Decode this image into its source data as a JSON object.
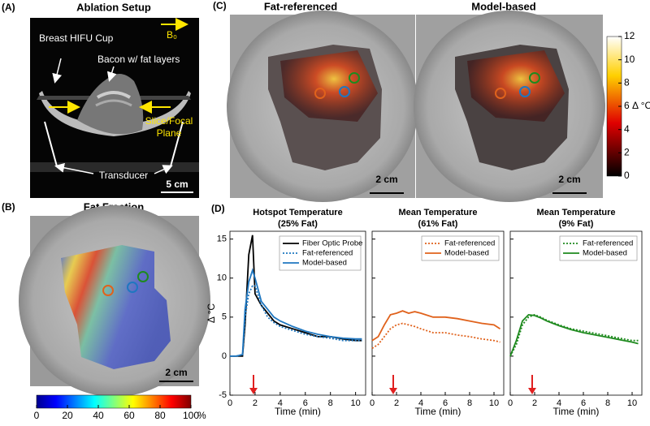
{
  "panel_a": {
    "letter": "(A)",
    "title": "Ablation Setup",
    "cup": "Breast HIFU Cup",
    "bacon": "Bacon w/ fat layers",
    "field": "B₀",
    "slice_1": "Slice/Focal",
    "slice_2": "Plane",
    "transducer": "Transducer",
    "scale": "5 cm"
  },
  "panel_b": {
    "letter": "(B)",
    "title": "Fat Fraction",
    "scale": "2 cm",
    "colorbar": {
      "lim": [
        0,
        100
      ],
      "ticks": [
        0,
        20,
        40,
        60,
        80,
        100
      ],
      "unit": "%"
    }
  },
  "panel_c": {
    "letter": "(C)",
    "title_left": "Fat-referenced",
    "title_right": "Model-based",
    "scale_left": "2 cm",
    "scale_right": "2 cm",
    "colorbar": {
      "lim": [
        0,
        12
      ],
      "ticks": [
        0,
        2,
        4,
        6,
        8,
        10,
        12
      ],
      "label": "Δ °C"
    }
  },
  "panel_d": {
    "letter": "(D)"
  },
  "chart_data": [
    {
      "type": "line",
      "title": "Hotspot Temperature",
      "subtitle": "(25% Fat)",
      "xlabel": "Time (min)",
      "ylabel": "Δ °C",
      "x": [
        0,
        0.5,
        1,
        1.2,
        1.5,
        1.8,
        2,
        2.5,
        3,
        3.5,
        4,
        5,
        6,
        7,
        8,
        9,
        10,
        10.5
      ],
      "series": [
        {
          "name": "Fiber Optic Probe",
          "color": "#000000",
          "style": "solid",
          "values": [
            0,
            0,
            0,
            4,
            13,
            15.5,
            8,
            6.5,
            5.5,
            4.5,
            4,
            3.5,
            3,
            2.5,
            2.5,
            2.2,
            2,
            2
          ]
        },
        {
          "name": "Fat-referenced",
          "color": "#1f77c0",
          "style": "dotted",
          "values": [
            0,
            0,
            0.2,
            5,
            8,
            9,
            9,
            6.5,
            5,
            4.3,
            3.8,
            3.3,
            2.8,
            2.5,
            2.3,
            2,
            2,
            2
          ]
        },
        {
          "name": "Model-based",
          "color": "#1f77c0",
          "style": "solid",
          "values": [
            0,
            0,
            0.2,
            6,
            9.5,
            11,
            10,
            7,
            6,
            5,
            4.5,
            3.8,
            3.2,
            2.8,
            2.5,
            2.3,
            2.2,
            2.2
          ]
        }
      ],
      "xlim": [
        0,
        10.8
      ],
      "ylim": [
        -5,
        16
      ],
      "xticks": [
        0,
        2,
        4,
        6,
        8,
        10
      ],
      "yticks": [
        -5,
        0,
        5,
        10,
        15
      ],
      "show_ytick_labels": true,
      "legend": "top-right"
    },
    {
      "type": "line",
      "title": "Mean Temperature",
      "subtitle": "(61% Fat)",
      "xlabel": "Time (min)",
      "x": [
        0,
        0.5,
        1,
        1.5,
        2,
        2.5,
        3,
        3.5,
        4,
        5,
        6,
        7,
        8,
        9,
        10,
        10.5
      ],
      "series": [
        {
          "name": "Fat-referenced",
          "color": "#e0621c",
          "style": "dotted",
          "values": [
            1,
            1.5,
            2.5,
            3.5,
            4,
            4.2,
            4,
            3.8,
            3.5,
            3,
            3,
            2.7,
            2.5,
            2.2,
            2,
            1.8
          ]
        },
        {
          "name": "Model-based",
          "color": "#e0621c",
          "style": "solid",
          "values": [
            2,
            2.5,
            4,
            5.3,
            5.5,
            5.8,
            5.5,
            5.7,
            5.5,
            5,
            5,
            4.8,
            4.5,
            4.2,
            4,
            3.5
          ]
        }
      ],
      "xlim": [
        0,
        10.8
      ],
      "ylim": [
        -5,
        16
      ],
      "xticks": [
        0,
        2,
        4,
        6,
        8,
        10
      ],
      "yticks": [
        -5,
        0,
        5,
        10,
        15
      ],
      "show_ytick_labels": false,
      "legend": "top-right"
    },
    {
      "type": "line",
      "title": "Mean Temperature",
      "subtitle": "(9% Fat)",
      "xlabel": "Time (min)",
      "x": [
        0,
        0.5,
        1,
        1.5,
        2,
        2.5,
        3,
        3.5,
        4,
        5,
        6,
        7,
        8,
        9,
        10,
        10.5
      ],
      "series": [
        {
          "name": "Fat-referenced",
          "color": "#1e8a1e",
          "style": "dotted",
          "values": [
            0,
            1.5,
            4,
            5,
            5.3,
            5,
            4.6,
            4.3,
            4,
            3.5,
            3.2,
            2.9,
            2.6,
            2.3,
            2,
            2
          ]
        },
        {
          "name": "Model-based",
          "color": "#1e8a1e",
          "style": "solid",
          "values": [
            0,
            2,
            4.5,
            5.3,
            5.2,
            4.9,
            4.5,
            4.2,
            3.9,
            3.4,
            3,
            2.7,
            2.4,
            2.1,
            1.8,
            1.6
          ]
        }
      ],
      "xlim": [
        0,
        10.8
      ],
      "ylim": [
        -5,
        16
      ],
      "xticks": [
        0,
        2,
        4,
        6,
        8,
        10
      ],
      "yticks": [
        -5,
        0,
        5,
        10,
        15
      ],
      "show_ytick_labels": false,
      "legend": "top-right"
    }
  ]
}
